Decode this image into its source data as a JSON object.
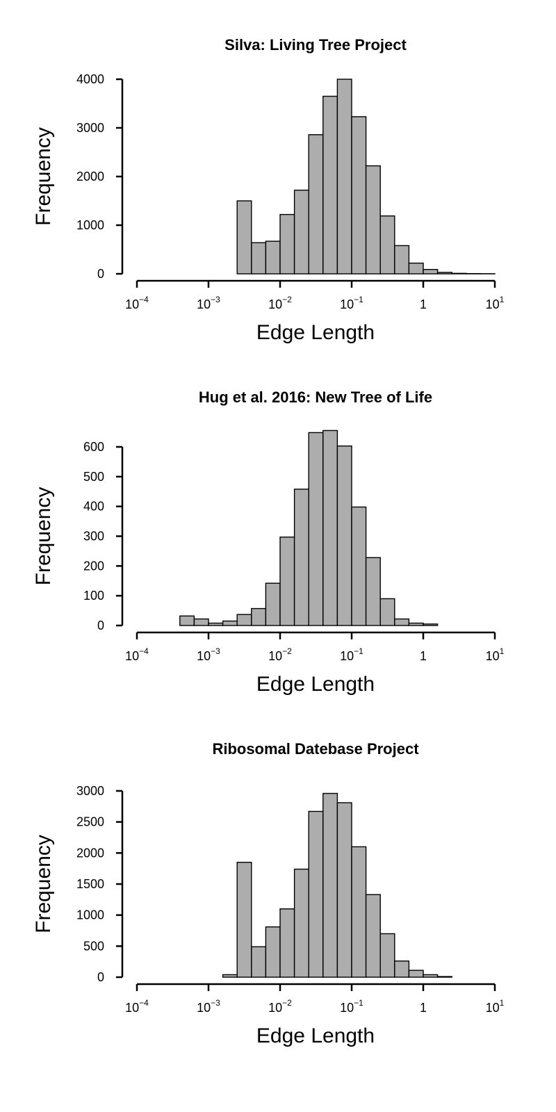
{
  "chart_data": [
    {
      "type": "bar",
      "title": "Silva: Living Tree Project",
      "xlabel": "Edge Length",
      "ylabel": "Frequency",
      "x_scale": "log10",
      "xlim": [
        0.0001,
        10
      ],
      "x_ticks": [
        {
          "value": 0.0001,
          "base": "10",
          "exp": "−4"
        },
        {
          "value": 0.001,
          "base": "10",
          "exp": "−3"
        },
        {
          "value": 0.01,
          "base": "10",
          "exp": "−2"
        },
        {
          "value": 0.1,
          "base": "10",
          "exp": "−1"
        },
        {
          "value": 1,
          "base": "1",
          "exp": ""
        },
        {
          "value": 10,
          "base": "10",
          "exp": "1"
        }
      ],
      "ylim": [
        0,
        4000
      ],
      "y_ticks": [
        "0",
        "1000",
        "2000",
        "3000",
        "4000"
      ],
      "bins_log10_start": -2.6,
      "bin_width_log10": 0.2,
      "values": [
        1500,
        640,
        670,
        1220,
        1720,
        2860,
        3650,
        4000,
        3230,
        2220,
        1190,
        580,
        220,
        90,
        30,
        10,
        5,
        3
      ]
    },
    {
      "type": "bar",
      "title": "Hug et al. 2016: New Tree of Life",
      "xlabel": "Edge Length",
      "ylabel": "Frequency",
      "x_scale": "log10",
      "xlim": [
        0.0001,
        10
      ],
      "x_ticks": [
        {
          "value": 0.0001,
          "base": "10",
          "exp": "−4"
        },
        {
          "value": 0.001,
          "base": "10",
          "exp": "−3"
        },
        {
          "value": 0.01,
          "base": "10",
          "exp": "−2"
        },
        {
          "value": 0.1,
          "base": "10",
          "exp": "−1"
        },
        {
          "value": 1,
          "base": "1",
          "exp": ""
        },
        {
          "value": 10,
          "base": "10",
          "exp": "1"
        }
      ],
      "ylim": [
        0,
        600
      ],
      "y_ticks": [
        "0",
        "100",
        "200",
        "300",
        "400",
        "500",
        "600"
      ],
      "bins_log10_start": -3.4,
      "bin_width_log10": 0.2,
      "values": [
        32,
        22,
        8,
        15,
        37,
        57,
        142,
        297,
        458,
        648,
        655,
        603,
        398,
        228,
        90,
        22,
        8,
        5
      ]
    },
    {
      "type": "bar",
      "title": "Ribosomal Datebase Project",
      "xlabel": "Edge Length",
      "ylabel": "Frequency",
      "x_scale": "log10",
      "xlim": [
        0.0001,
        10
      ],
      "x_ticks": [
        {
          "value": 0.0001,
          "base": "10",
          "exp": "−4"
        },
        {
          "value": 0.001,
          "base": "10",
          "exp": "−3"
        },
        {
          "value": 0.01,
          "base": "10",
          "exp": "−2"
        },
        {
          "value": 0.1,
          "base": "10",
          "exp": "−1"
        },
        {
          "value": 1,
          "base": "1",
          "exp": ""
        },
        {
          "value": 10,
          "base": "10",
          "exp": "1"
        }
      ],
      "ylim": [
        0,
        3000
      ],
      "y_ticks": [
        "0",
        "500",
        "1000",
        "1500",
        "2000",
        "2500",
        "3000"
      ],
      "bins_log10_start": -2.8,
      "bin_width_log10": 0.2,
      "values": [
        40,
        1850,
        490,
        810,
        1100,
        1740,
        2670,
        2960,
        2810,
        2100,
        1330,
        700,
        260,
        110,
        40,
        10
      ]
    }
  ]
}
